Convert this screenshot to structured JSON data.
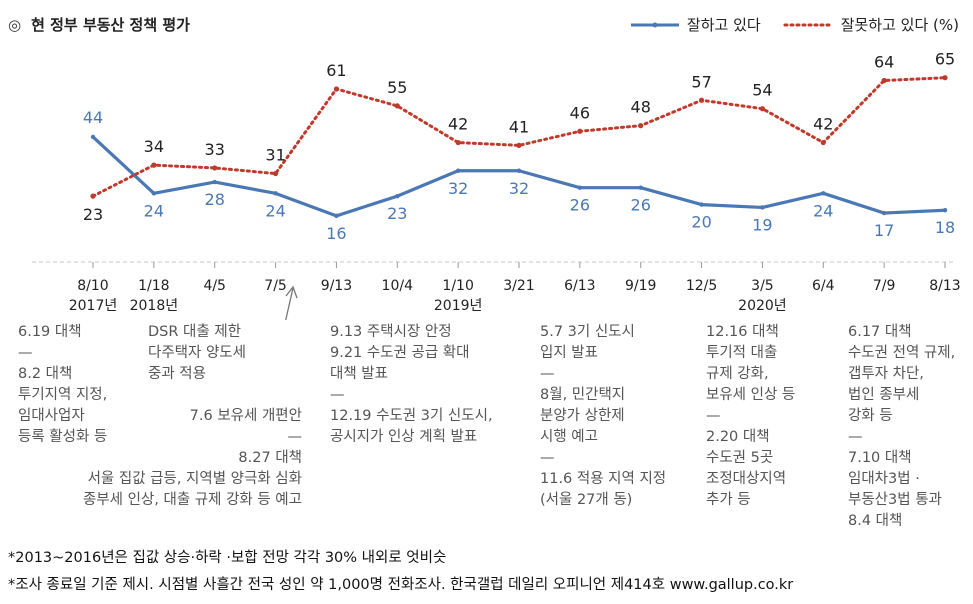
{
  "header": {
    "icon": "◎",
    "title": "현 정부 부동산 정책 평가",
    "legend": [
      {
        "label": "잘하고 있다",
        "color": "#4a78b5",
        "style": "solid"
      },
      {
        "label": "잘못하고 있다 (%)",
        "color": "#c0392b",
        "style": "dotted"
      }
    ]
  },
  "chart_data": {
    "type": "line",
    "categories": [
      "8/10",
      "1/18",
      "4/5",
      "7/5",
      "9/13",
      "10/4",
      "1/10",
      "3/21",
      "6/13",
      "9/19",
      "12/5",
      "3/5",
      "6/4",
      "7/9",
      "8/13"
    ],
    "year_labels": [
      "2017년",
      "2018년",
      "2019년",
      "2020년"
    ],
    "series": [
      {
        "name": "잘하고 있다",
        "color": "#4a78b5",
        "values": [
          44,
          24,
          28,
          24,
          16,
          23,
          32,
          32,
          26,
          26,
          20,
          19,
          24,
          17,
          18
        ]
      },
      {
        "name": "잘못하고 있다 (%)",
        "color": "#c0392b",
        "values": [
          23,
          34,
          33,
          31,
          61,
          55,
          42,
          41,
          46,
          48,
          57,
          54,
          42,
          64,
          65
        ]
      }
    ],
    "ylim": [
      0,
      100
    ],
    "grid": false
  },
  "notes": [
    {
      "text": "6.19 대책\n—\n8.2 대책\n투기지역 지정,\n임대사업자\n등록 활성화 등"
    },
    {
      "text": "DSR 대출 제한\n다주택자 양도세\n중과 적용"
    },
    {
      "text": "7.6  보유세 개편안\n—\n8.27 대책\n서울 집값 급등, 지역별 양극화 심화\n종부세 인상, 대출 규제 강화 등 예고"
    },
    {
      "text": "9.13 주택시장 안정\n9.21 수도권 공급 확대\n대책 발표\n—\n12.19 수도권 3기 신도시,\n공시지가 인상 계획 발표"
    },
    {
      "text": "5.7 3기 신도시\n입지 발표\n—\n8월, 민간택지\n분양가 상한제\n시행 예고\n—\n11.6 적용 지역 지정\n(서울 27개 동)"
    },
    {
      "text": "12.16 대책\n투기적 대출\n규제 강화,\n보유세 인상 등\n—\n2.20 대책\n수도권 5곳\n조정대상지역\n추가 등"
    },
    {
      "text": "6.17 대책\n수도권 전역 규제,\n갭투자 차단,\n법인 종부세\n강화 등\n—\n7.10 대책\n임대차3법 ·\n부동산3법 통과\n8.4 대책"
    }
  ],
  "footnotes": [
    "*2013~2016년은 집값 상승·하락 ·보합 전망 각각 30% 내외로 엇비슷",
    "*조사 종료일 기준 제시. 시점별 사흘간 전국 성인 약 1,000명 전화조사. 한국갤럽 데일리 오피니언 제414호 www.gallup.co.kr"
  ]
}
